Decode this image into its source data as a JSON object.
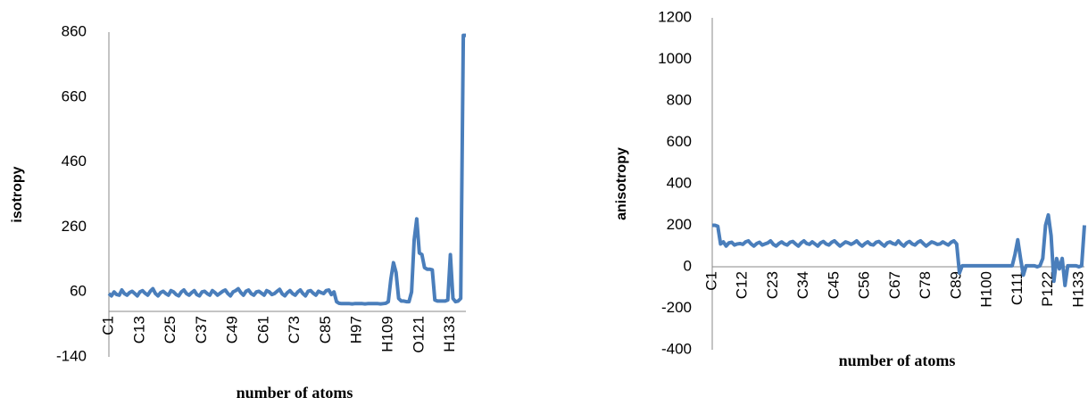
{
  "chart_data": [
    {
      "type": "line",
      "ylabel": "isotropy",
      "xlabel": "number of atoms",
      "color": "#4a7ebb",
      "categories": [
        "C1",
        null,
        null,
        null,
        null,
        null,
        null,
        null,
        null,
        null,
        null,
        null,
        "C13",
        null,
        null,
        null,
        null,
        null,
        null,
        null,
        null,
        null,
        null,
        null,
        "C25",
        null,
        null,
        null,
        null,
        null,
        null,
        null,
        null,
        null,
        null,
        null,
        "C37",
        null,
        null,
        null,
        null,
        null,
        null,
        null,
        null,
        null,
        null,
        null,
        "C49",
        null,
        null,
        null,
        null,
        null,
        null,
        null,
        null,
        null,
        null,
        null,
        "C61",
        null,
        null,
        null,
        null,
        null,
        null,
        null,
        null,
        null,
        null,
        null,
        "C73",
        null,
        null,
        null,
        null,
        null,
        null,
        null,
        null,
        null,
        null,
        null,
        "C85",
        null,
        null,
        null,
        null,
        null,
        null,
        null,
        null,
        null,
        null,
        null,
        "H97",
        null,
        null,
        null,
        null,
        null,
        null,
        null,
        null,
        null,
        null,
        null,
        "H109",
        null,
        null,
        null,
        null,
        null,
        null,
        null,
        null,
        null,
        null,
        null,
        "O121",
        null,
        null,
        null,
        null,
        null,
        null,
        null,
        null,
        null,
        null,
        null,
        "H133",
        null,
        null,
        null,
        null,
        null,
        null
      ],
      "values": [
        55,
        48,
        60,
        52,
        50,
        66,
        55,
        50,
        58,
        62,
        55,
        48,
        60,
        64,
        56,
        50,
        62,
        70,
        55,
        48,
        58,
        62,
        55,
        50,
        64,
        60,
        52,
        48,
        60,
        66,
        55,
        50,
        58,
        64,
        52,
        48,
        60,
        62,
        55,
        50,
        64,
        58,
        50,
        56,
        62,
        66,
        55,
        48,
        60,
        64,
        70,
        58,
        50,
        62,
        66,
        55,
        50,
        60,
        62,
        56,
        50,
        64,
        60,
        52,
        55,
        62,
        68,
        54,
        48,
        58,
        64,
        55,
        50,
        60,
        66,
        55,
        48,
        62,
        64,
        56,
        50,
        62,
        58,
        55,
        64,
        66,
        52,
        60,
        30,
        25,
        24,
        24,
        24,
        24,
        23,
        24,
        24,
        24,
        24,
        23,
        24,
        24,
        24,
        24,
        24,
        23,
        24,
        25,
        30,
        100,
        150,
        120,
        40,
        32,
        32,
        30,
        30,
        60,
        220,
        285,
        180,
        175,
        135,
        130,
        130,
        128,
        35,
        32,
        32,
        32,
        32,
        35,
        175,
        40,
        30,
        32,
        40,
        850,
        850
      ],
      "ylim": [
        -140,
        860
      ],
      "yticks": [
        -140,
        60,
        260,
        460,
        660,
        860
      ]
    },
    {
      "type": "line",
      "ylabel": "anisotropy",
      "xlabel": "number of atoms",
      "color": "#4a7ebb",
      "categories": [
        "C1",
        null,
        null,
        null,
        null,
        null,
        null,
        null,
        null,
        null,
        null,
        "C12",
        null,
        null,
        null,
        null,
        null,
        null,
        null,
        null,
        null,
        null,
        "C23",
        null,
        null,
        null,
        null,
        null,
        null,
        null,
        null,
        null,
        null,
        "C34",
        null,
        null,
        null,
        null,
        null,
        null,
        null,
        null,
        null,
        null,
        "C45",
        null,
        null,
        null,
        null,
        null,
        null,
        null,
        null,
        null,
        null,
        "C56",
        null,
        null,
        null,
        null,
        null,
        null,
        null,
        null,
        null,
        null,
        "C67",
        null,
        null,
        null,
        null,
        null,
        null,
        null,
        null,
        null,
        null,
        "C78",
        null,
        null,
        null,
        null,
        null,
        null,
        null,
        null,
        null,
        null,
        "C89",
        null,
        null,
        null,
        null,
        null,
        null,
        null,
        null,
        null,
        null,
        "H100",
        null,
        null,
        null,
        null,
        null,
        null,
        null,
        null,
        null,
        null,
        "C111",
        null,
        null,
        null,
        null,
        null,
        null,
        null,
        null,
        null,
        null,
        "P122",
        null,
        null,
        null,
        null,
        null,
        null,
        null,
        null,
        null,
        null,
        "H133",
        null,
        null
      ],
      "values": [
        200,
        200,
        195,
        110,
        120,
        100,
        115,
        118,
        105,
        110,
        112,
        108,
        120,
        125,
        110,
        100,
        112,
        118,
        105,
        110,
        115,
        125,
        108,
        100,
        112,
        120,
        110,
        105,
        118,
        122,
        110,
        100,
        115,
        125,
        112,
        108,
        120,
        110,
        100,
        115,
        122,
        110,
        105,
        118,
        125,
        112,
        100,
        110,
        120,
        115,
        108,
        115,
        125,
        110,
        100,
        112,
        120,
        108,
        105,
        118,
        122,
        110,
        100,
        115,
        120,
        112,
        108,
        125,
        110,
        100,
        115,
        122,
        110,
        105,
        118,
        125,
        112,
        100,
        110,
        120,
        115,
        108,
        110,
        120,
        112,
        105,
        118,
        125,
        110,
        -30,
        5,
        5,
        5,
        5,
        5,
        5,
        5,
        5,
        5,
        5,
        5,
        5,
        5,
        5,
        5,
        5,
        5,
        5,
        5,
        60,
        130,
        40,
        -40,
        5,
        5,
        5,
        5,
        0,
        5,
        40,
        200,
        250,
        150,
        -70,
        40,
        -10,
        40,
        -90,
        5,
        5,
        5,
        5,
        0,
        5,
        200
      ],
      "ylim": [
        -400,
        1200
      ],
      "yticks": [
        -400,
        -200,
        0,
        200,
        400,
        600,
        800,
        1000,
        1200
      ]
    }
  ]
}
